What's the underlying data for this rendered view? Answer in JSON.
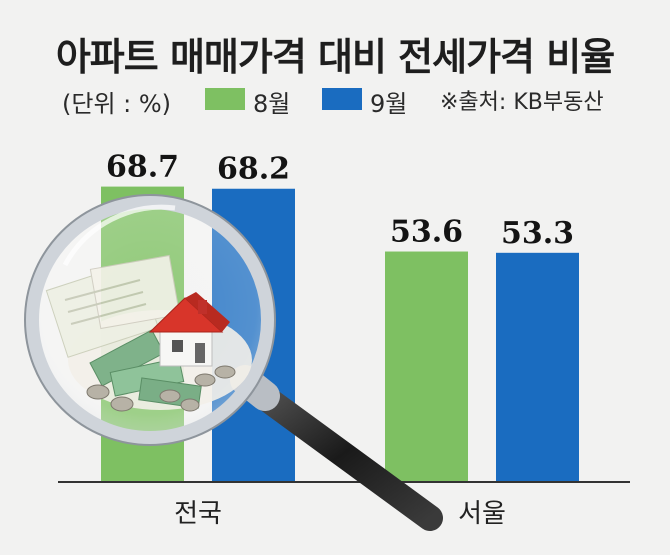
{
  "title": "아파트 매매가격 대비 전세가격 비율",
  "unit": "(단위 : %)",
  "source": "※출처: KB부동산",
  "colors": {
    "series1": "#7ec062",
    "series2": "#1a6cc0"
  },
  "chart_data": {
    "type": "bar",
    "categories": [
      "전국",
      "서울"
    ],
    "series": [
      {
        "name": "8월",
        "values": [
          68.7,
          53.6
        ]
      },
      {
        "name": "9월",
        "values": [
          68.2,
          53.3
        ]
      }
    ],
    "data_labels": [
      [
        "68.7",
        "53.6"
      ],
      [
        "68.2",
        "53.3"
      ]
    ],
    "legend": "top",
    "grid": false
  },
  "illustration": {
    "icons": [
      "magnifying-glass-icon",
      "house-icon",
      "money-icon"
    ]
  }
}
